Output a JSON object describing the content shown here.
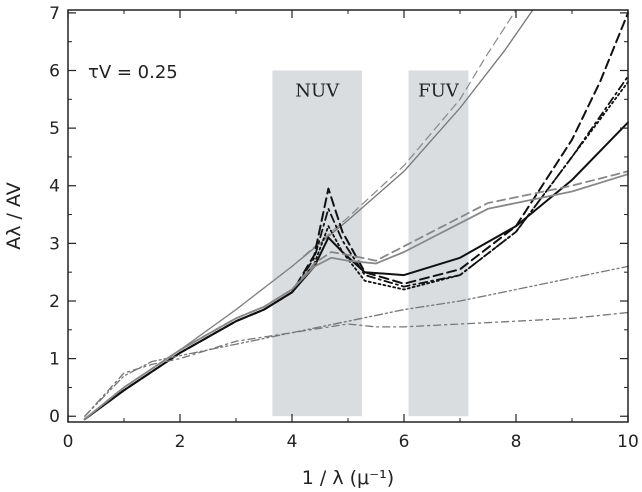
{
  "chart_data": {
    "type": "line",
    "title": "",
    "annotation": "τV = 0.25",
    "xlabel": "1 / λ (μ⁻¹)",
    "ylabel": "Aλ / AV",
    "xlim": [
      0,
      10
    ],
    "ylim": [
      -0.1,
      7.05
    ],
    "xticks": [
      0,
      2,
      4,
      6,
      8,
      10
    ],
    "yticks": [
      0,
      1,
      2,
      3,
      4,
      5,
      6,
      7
    ],
    "grid": false,
    "legend": "none",
    "bands": [
      {
        "label": "NUV",
        "x0": 3.65,
        "x1": 5.25,
        "y0": 0.0,
        "y1": 6.0,
        "color": "#d9dde0"
      },
      {
        "label": "FUV",
        "x0": 6.08,
        "x1": 7.15,
        "y0": 0.0,
        "y1": 6.0,
        "color": "#d9dde0"
      }
    ],
    "series": [
      {
        "style": "gray-thin-solid",
        "color": "#777777",
        "width": 1.3,
        "dash": "",
        "x": [
          0.3,
          1,
          2,
          3,
          4,
          5,
          6,
          7,
          7.8,
          8.3
        ],
        "y": [
          -0.05,
          0.5,
          1.15,
          1.85,
          2.6,
          3.4,
          4.25,
          5.35,
          6.35,
          7.05
        ]
      },
      {
        "style": "gray-thin-dashed",
        "color": "#888888",
        "width": 1.2,
        "dash": "8,5",
        "x": [
          0.3,
          1,
          2,
          3,
          4,
          5,
          6,
          7,
          7.5,
          8.0
        ],
        "y": [
          -0.05,
          0.5,
          1.15,
          1.85,
          2.6,
          3.45,
          4.35,
          5.5,
          6.3,
          7.05
        ]
      },
      {
        "style": "black-thick-solid",
        "color": "#111111",
        "width": 2.0,
        "dash": "",
        "x": [
          0.3,
          1,
          2,
          3,
          3.5,
          4,
          4.4,
          4.65,
          4.9,
          5.3,
          6,
          7,
          8,
          9,
          10
        ],
        "y": [
          -0.05,
          0.45,
          1.1,
          1.65,
          1.85,
          2.15,
          2.6,
          3.1,
          2.85,
          2.5,
          2.45,
          2.75,
          3.3,
          4.1,
          5.1
        ]
      },
      {
        "style": "black-thick-dashed",
        "color": "#111111",
        "width": 2.0,
        "dash": "9,5",
        "x": [
          0.3,
          1,
          2,
          3,
          3.5,
          4,
          4.4,
          4.65,
          4.9,
          5.3,
          6,
          7,
          8,
          9,
          9.5,
          10
        ],
        "y": [
          -0.05,
          0.45,
          1.1,
          1.65,
          1.85,
          2.15,
          2.8,
          3.95,
          3.2,
          2.5,
          2.3,
          2.55,
          3.3,
          4.8,
          5.8,
          7.0
        ]
      },
      {
        "style": "black-dash-dot",
        "color": "#111111",
        "width": 1.8,
        "dash": "8,4,2,4",
        "x": [
          0.3,
          1,
          2,
          3,
          3.5,
          4,
          4.4,
          4.65,
          4.9,
          5.3,
          6,
          7,
          8,
          9,
          10
        ],
        "y": [
          -0.05,
          0.45,
          1.1,
          1.65,
          1.85,
          2.15,
          2.75,
          3.6,
          3.05,
          2.45,
          2.25,
          2.45,
          3.2,
          4.5,
          5.9
        ]
      },
      {
        "style": "black-dotted",
        "color": "#111111",
        "width": 1.8,
        "dash": "2,3",
        "x": [
          0.3,
          1,
          2,
          3,
          3.5,
          4,
          4.4,
          4.65,
          4.9,
          5.3,
          6,
          7,
          8,
          9,
          10
        ],
        "y": [
          -0.05,
          0.45,
          1.1,
          1.65,
          1.85,
          2.15,
          2.65,
          3.3,
          2.85,
          2.35,
          2.2,
          2.45,
          3.2,
          4.5,
          5.8
        ]
      },
      {
        "style": "gray-mid-solid",
        "color": "#888888",
        "width": 1.8,
        "dash": "",
        "x": [
          0.3,
          1,
          2,
          3,
          3.5,
          4,
          4.4,
          4.7,
          5.0,
          5.5,
          6,
          7,
          7.5,
          8,
          9,
          10
        ],
        "y": [
          -0.05,
          0.5,
          1.15,
          1.7,
          1.9,
          2.2,
          2.6,
          2.75,
          2.7,
          2.65,
          2.85,
          3.35,
          3.6,
          3.7,
          3.9,
          4.2
        ]
      },
      {
        "style": "gray-mid-dashed",
        "color": "#888888",
        "width": 1.8,
        "dash": "8,5",
        "x": [
          0.3,
          1,
          2,
          3,
          3.5,
          4,
          4.4,
          4.7,
          5.0,
          5.5,
          6,
          7,
          7.5,
          8,
          9,
          10
        ],
        "y": [
          -0.05,
          0.5,
          1.15,
          1.7,
          1.9,
          2.2,
          2.65,
          2.85,
          2.8,
          2.7,
          2.95,
          3.45,
          3.7,
          3.8,
          4.0,
          4.25
        ]
      },
      {
        "style": "gray-dash-dot-dot",
        "color": "#777777",
        "width": 1.3,
        "dash": "8,3,2,3,2,3",
        "x": [
          0.3,
          1,
          1.5,
          2,
          3,
          4,
          5,
          6,
          7,
          8,
          9,
          10
        ],
        "y": [
          0.0,
          0.7,
          0.95,
          1.05,
          1.25,
          1.45,
          1.65,
          1.85,
          2.0,
          2.2,
          2.4,
          2.6
        ]
      },
      {
        "style": "gray-dash-dot",
        "color": "#777777",
        "width": 1.3,
        "dash": "7,4,2,4",
        "x": [
          0.3,
          1,
          1.5,
          2,
          3,
          4,
          5,
          5.5,
          6,
          7,
          8,
          9,
          10
        ],
        "y": [
          0.0,
          0.75,
          0.9,
          1.0,
          1.3,
          1.45,
          1.6,
          1.55,
          1.55,
          1.6,
          1.65,
          1.7,
          1.8
        ]
      }
    ]
  }
}
